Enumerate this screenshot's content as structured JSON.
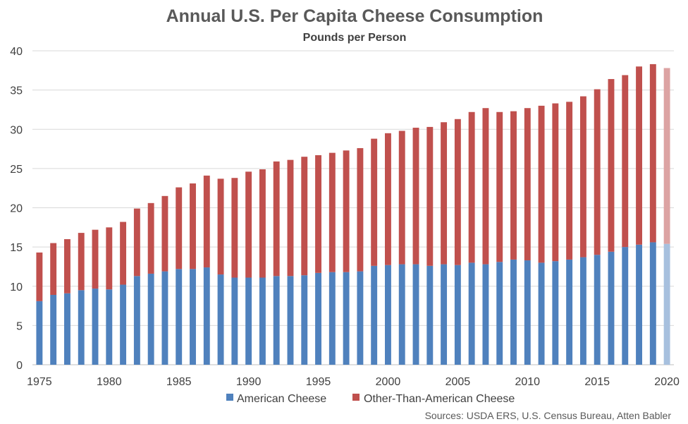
{
  "chart_data": {
    "type": "bar",
    "stacked": true,
    "title": "Annual U.S. Per Capita Cheese Consumption",
    "subtitle": "Pounds per Person",
    "source": "Sources: USDA ERS, U.S. Census Bureau, Atten Babler",
    "ylim": [
      0,
      40
    ],
    "yticks": [
      0,
      5,
      10,
      15,
      20,
      25,
      30,
      35,
      40
    ],
    "xticks": [
      1975,
      1980,
      1985,
      1990,
      1995,
      2000,
      2005,
      2010,
      2015,
      2020
    ],
    "grid": true,
    "legend_position": "bottom",
    "categories": [
      1975,
      1976,
      1977,
      1978,
      1979,
      1980,
      1981,
      1982,
      1983,
      1984,
      1985,
      1986,
      1987,
      1988,
      1989,
      1990,
      1991,
      1992,
      1993,
      1994,
      1995,
      1996,
      1997,
      1998,
      1999,
      2000,
      2001,
      2002,
      2003,
      2004,
      2005,
      2006,
      2007,
      2008,
      2009,
      2010,
      2011,
      2012,
      2013,
      2014,
      2015,
      2016,
      2017,
      2018,
      2019,
      2020
    ],
    "series": [
      {
        "name": "American Cheese",
        "color": "#4f81bd",
        "projected_color": "#a7c0de",
        "values": [
          8.1,
          8.9,
          9.1,
          9.5,
          9.7,
          9.6,
          10.2,
          11.3,
          11.6,
          11.9,
          12.2,
          12.2,
          12.4,
          11.5,
          11.1,
          11.1,
          11.1,
          11.3,
          11.3,
          11.4,
          11.7,
          11.8,
          11.8,
          11.9,
          12.6,
          12.7,
          12.8,
          12.8,
          12.6,
          12.8,
          12.7,
          13.0,
          12.8,
          13.1,
          13.4,
          13.3,
          13.0,
          13.2,
          13.4,
          13.7,
          14.0,
          14.4,
          15.0,
          15.3,
          15.6,
          15.4
        ]
      },
      {
        "name": "Other-Than-American Cheese",
        "color": "#c0504d",
        "projected_color": "#dca3a3",
        "values": [
          6.2,
          6.6,
          6.9,
          7.3,
          7.5,
          7.9,
          8.0,
          8.6,
          9.0,
          9.6,
          10.4,
          10.9,
          11.7,
          12.2,
          12.7,
          13.5,
          13.8,
          14.6,
          14.8,
          15.1,
          15.0,
          15.2,
          15.5,
          15.7,
          16.2,
          16.8,
          17.0,
          17.4,
          17.7,
          18.1,
          18.6,
          19.2,
          19.9,
          19.1,
          18.9,
          19.4,
          20.0,
          20.1,
          20.1,
          20.5,
          21.1,
          22.0,
          21.9,
          22.7,
          22.7,
          22.4
        ]
      }
    ],
    "projected_categories": [
      2020
    ]
  }
}
